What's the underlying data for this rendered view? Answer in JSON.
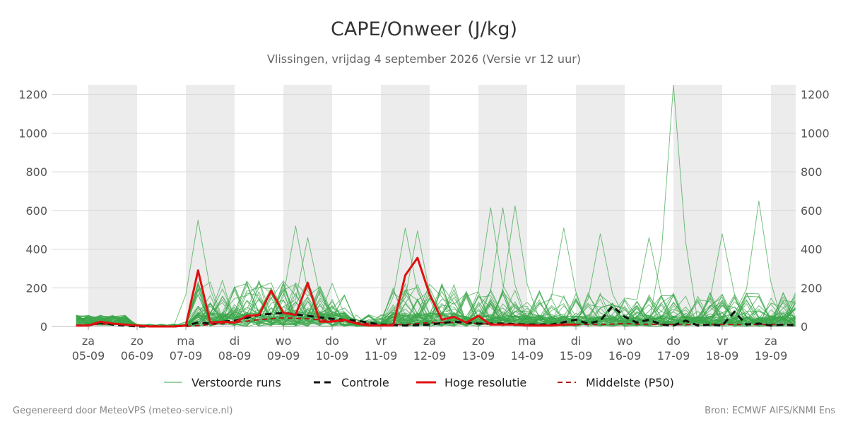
{
  "chart_data": {
    "type": "line",
    "title": "CAPE/Onweer (J/kg)",
    "subtitle": "Vlissingen, vrijdag  4 september 2026 (Versie vr 12 uur)",
    "ylim": [
      0,
      1250
    ],
    "yticks": [
      0,
      200,
      400,
      600,
      800,
      1000,
      1200
    ],
    "grid": true,
    "x_range_days": [
      -0.25,
      14.5
    ],
    "day_labels": [
      {
        "day": "za",
        "date": "05-09"
      },
      {
        "day": "zo",
        "date": "06-09"
      },
      {
        "day": "ma",
        "date": "07-09"
      },
      {
        "day": "di",
        "date": "08-09"
      },
      {
        "day": "wo",
        "date": "09-09"
      },
      {
        "day": "do",
        "date": "10-09"
      },
      {
        "day": "vr",
        "date": "11-09"
      },
      {
        "day": "za",
        "date": "12-09"
      },
      {
        "day": "zo",
        "date": "13-09"
      },
      {
        "day": "ma",
        "date": "14-09"
      },
      {
        "day": "di",
        "date": "15-09"
      },
      {
        "day": "wo",
        "date": "16-09"
      },
      {
        "day": "do",
        "date": "17-09"
      },
      {
        "day": "vr",
        "date": "18-09"
      },
      {
        "day": "za",
        "date": "19-09"
      }
    ],
    "series_colors": {
      "ensemble": "#3aa64a",
      "controle": "#111111",
      "hires": "#e01010",
      "median": "#b01818"
    },
    "hoge_resolutie": {
      "name": "Hoge resolutie",
      "x": [
        -0.25,
        0,
        0.25,
        0.5,
        0.75,
        1,
        1.25,
        1.5,
        1.75,
        2,
        2.25,
        2.5,
        2.75,
        3,
        3.25,
        3.5,
        3.75,
        4,
        4.25,
        4.5,
        4.75,
        5,
        5.25,
        5.5,
        5.75,
        6,
        6.25,
        6.5,
        6.75,
        7,
        7.25,
        7.5,
        7.75,
        8,
        8.25,
        8.5,
        8.75,
        9,
        9.25,
        9.5,
        9.75,
        10
      ],
      "values": [
        5,
        5,
        25,
        15,
        10,
        5,
        0,
        0,
        0,
        5,
        290,
        20,
        25,
        20,
        55,
        60,
        185,
        70,
        60,
        225,
        25,
        25,
        35,
        15,
        5,
        5,
        5,
        265,
        355,
        165,
        35,
        50,
        20,
        55,
        10,
        10,
        10,
        5,
        5,
        5,
        10,
        10
      ]
    },
    "controle": {
      "name": "Controle",
      "x": [
        -0.25,
        0,
        0.25,
        0.5,
        0.75,
        1,
        1.25,
        1.5,
        1.75,
        2,
        2.25,
        2.5,
        2.75,
        3,
        3.5,
        4,
        4.5,
        5,
        5.5,
        6,
        6.5,
        7,
        7.5,
        8,
        8.5,
        9,
        9.5,
        10,
        10.25,
        10.5,
        10.75,
        11,
        11.25,
        11.5,
        11.75,
        12,
        12.25,
        12.5,
        12.75,
        13,
        13.25,
        13.5,
        13.75,
        14,
        14.25,
        14.5
      ],
      "values": [
        5,
        5,
        20,
        10,
        5,
        0,
        0,
        0,
        0,
        5,
        20,
        15,
        25,
        30,
        60,
        70,
        55,
        40,
        30,
        10,
        5,
        10,
        25,
        15,
        15,
        10,
        10,
        35,
        15,
        30,
        105,
        50,
        20,
        35,
        10,
        5,
        30,
        5,
        10,
        5,
        75,
        10,
        15,
        5,
        10,
        5
      ]
    },
    "middelste_p50": {
      "name": "Middelste (P50)",
      "x": [
        -0.25,
        0.5,
        1,
        2,
        2.5,
        3,
        3.5,
        4,
        4.5,
        5,
        5.5,
        6,
        6.5,
        7,
        7.5,
        8,
        8.5,
        9,
        9.5,
        10,
        10.5,
        11,
        11.5,
        12,
        12.5,
        13,
        13.5,
        14,
        14.5
      ],
      "values": [
        5,
        15,
        5,
        0,
        10,
        20,
        35,
        45,
        40,
        30,
        20,
        10,
        10,
        20,
        20,
        15,
        10,
        10,
        10,
        10,
        10,
        15,
        10,
        10,
        10,
        10,
        10,
        10,
        10
      ]
    },
    "verstoorde_runs": {
      "name": "Verstoorde runs",
      "count": 50,
      "peaks": [
        {
          "x": 2.25,
          "value": 550
        },
        {
          "x": 4.25,
          "value": 520
        },
        {
          "x": 4.5,
          "value": 460
        },
        {
          "x": 6.5,
          "value": 510
        },
        {
          "x": 6.75,
          "value": 495
        },
        {
          "x": 8.25,
          "value": 615
        },
        {
          "x": 8.5,
          "value": 615
        },
        {
          "x": 8.75,
          "value": 625
        },
        {
          "x": 9.75,
          "value": 510
        },
        {
          "x": 10.5,
          "value": 480
        },
        {
          "x": 11.5,
          "value": 460
        },
        {
          "x": 12,
          "value": 1250
        },
        {
          "x": 13,
          "value": 480
        },
        {
          "x": 13.75,
          "value": 650
        }
      ]
    }
  },
  "legend": [
    {
      "key": "ensemble",
      "label": "Verstoorde runs"
    },
    {
      "key": "controle",
      "label": "Controle"
    },
    {
      "key": "hires",
      "label": "Hoge resolutie"
    },
    {
      "key": "median",
      "label": "Middelste (P50)"
    }
  ],
  "footer": {
    "left": "Gegenereerd door MeteoVPS (meteo-service.nl)",
    "right": "Bron: ECMWF AIFS/KNMI Ens"
  }
}
